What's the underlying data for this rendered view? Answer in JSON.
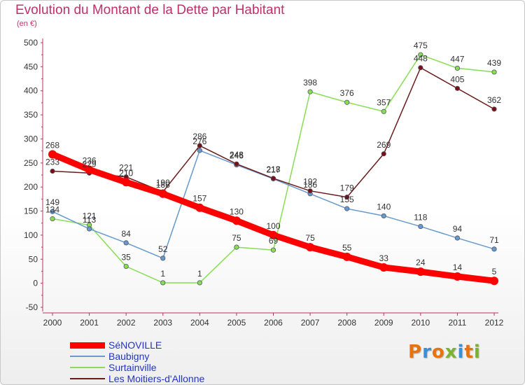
{
  "title": "Evolution du Montant de la Dette par Habitant",
  "unit": "(en €)",
  "logo_text": "Proxiti",
  "logo_colors": [
    "#e8730c",
    "#3a8fd6",
    "#e8730c",
    "#7ab32e",
    "#3a8fd6",
    "#e8730c",
    "#7ab32e"
  ],
  "chart_data": {
    "type": "line",
    "title": "Evolution du Montant de la Dette par Habitant",
    "ylabel": "(en €)",
    "xlabel": "",
    "x": [
      "2000",
      "2001",
      "2002",
      "2003",
      "2004",
      "2005",
      "2006",
      "2007",
      "2008",
      "2009",
      "2010",
      "2011",
      "2012"
    ],
    "ylim": [
      -50,
      500
    ],
    "yticks": [
      -50,
      0,
      50,
      100,
      150,
      200,
      250,
      300,
      350,
      400,
      450,
      500
    ],
    "grid": false,
    "legend_position": "bottom-left",
    "series": [
      {
        "name": "SéNOVILLE",
        "color": "#ff0000",
        "values": [
          268,
          236,
          210,
          186,
          157,
          130,
          100,
          75,
          55,
          33,
          24,
          14,
          5
        ]
      },
      {
        "name": "Baubigny",
        "color": "#6699cc",
        "values": [
          149,
          113,
          84,
          52,
          276,
          246,
          217,
          186,
          155,
          140,
          118,
          94,
          71
        ]
      },
      {
        "name": "Surtainville",
        "color": "#88dd55",
        "values": [
          134,
          121,
          35,
          1,
          1,
          75,
          69,
          398,
          376,
          357,
          475,
          447,
          439
        ]
      },
      {
        "name": "Les Moitiers-d'Allonne",
        "color": "#6b1a1a",
        "values": [
          233,
          229,
          221,
          190,
          286,
          248,
          218,
          192,
          179,
          269,
          448,
          405,
          362
        ]
      }
    ]
  }
}
